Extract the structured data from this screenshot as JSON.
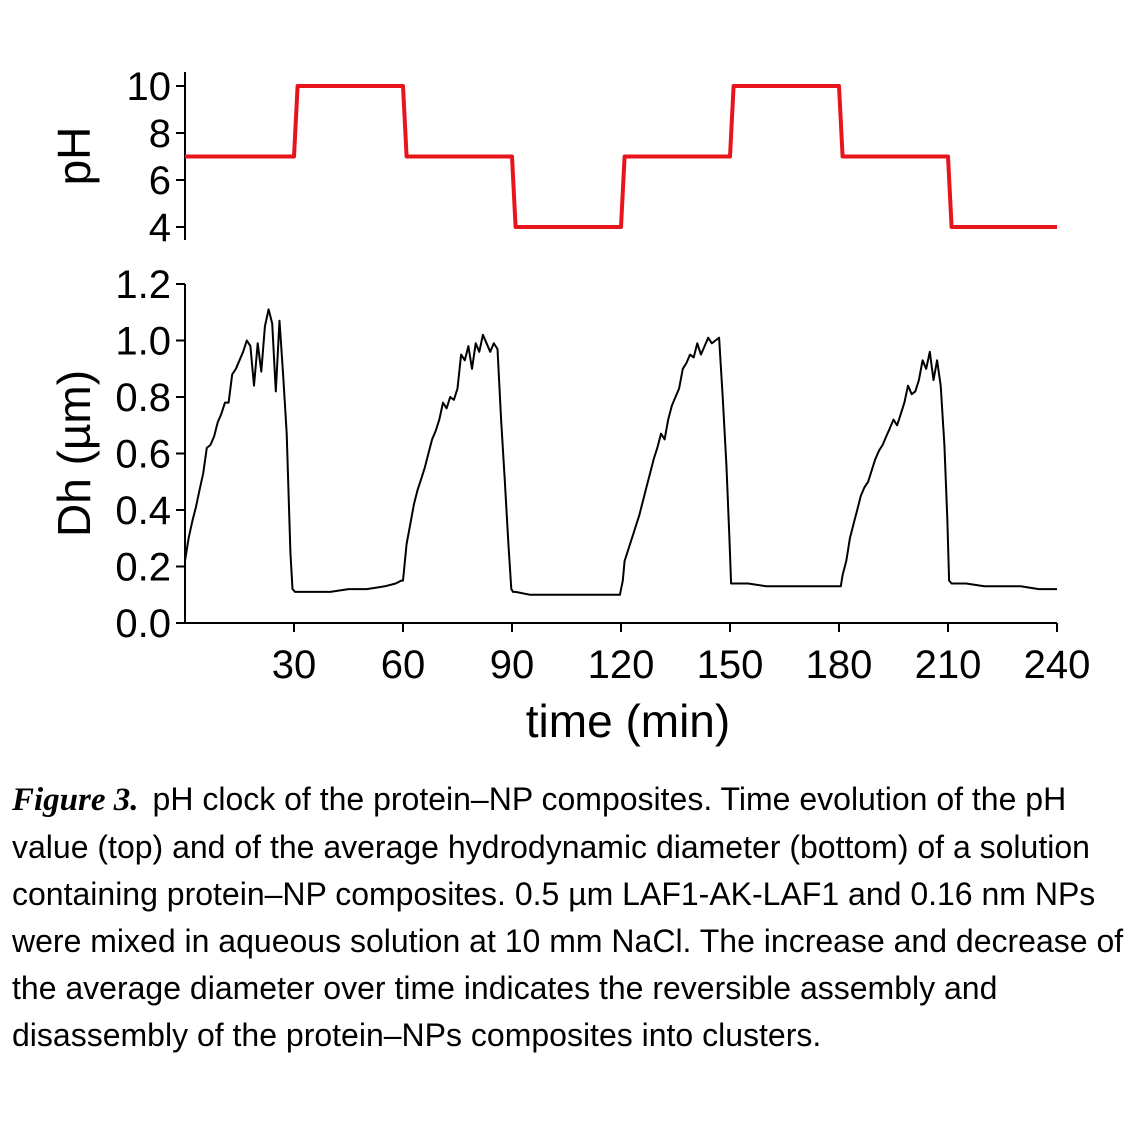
{
  "chart_data": [
    {
      "type": "line",
      "panel": "top",
      "ylabel": "pH",
      "xlim": [
        0,
        240
      ],
      "ylim": [
        4,
        10
      ],
      "yticks": [
        "4",
        "6",
        "8",
        "10"
      ],
      "series": [
        {
          "color": "#e8141c",
          "x": [
            0,
            30,
            31,
            60,
            61,
            90,
            91,
            120,
            121,
            150,
            151,
            180,
            181,
            210,
            211,
            240
          ],
          "y": [
            7,
            7,
            10,
            10,
            7,
            7,
            4,
            4,
            7,
            7,
            10,
            10,
            7,
            7,
            4,
            4
          ]
        }
      ]
    },
    {
      "type": "line",
      "panel": "bottom",
      "ylabel": "Dh (µm)",
      "xlabel": "time (min)",
      "xlim": [
        0,
        240
      ],
      "ylim": [
        0.0,
        1.2
      ],
      "xticks": [
        "30",
        "60",
        "90",
        "120",
        "150",
        "180",
        "210",
        "240"
      ],
      "yticks": [
        "0.0",
        "0.2",
        "0.4",
        "0.6",
        "0.8",
        "1.0",
        "1.2"
      ],
      "series": [
        {
          "color": "#000000",
          "x": [
            0,
            1,
            2,
            3,
            4,
            5,
            6,
            7,
            8,
            9,
            10,
            11,
            12,
            13,
            14,
            15,
            16,
            17,
            18,
            19,
            20,
            21,
            22,
            23,
            24,
            25,
            26,
            27,
            28,
            29,
            29.6,
            30.3,
            31,
            35,
            40,
            45,
            50,
            55,
            58,
            59.5,
            60,
            61,
            62,
            63,
            64,
            65,
            66,
            67,
            68,
            69,
            70,
            71,
            72,
            73,
            74,
            75,
            76,
            77,
            78,
            79,
            80,
            81,
            82,
            83,
            84,
            85,
            86,
            87,
            88,
            89,
            89.8,
            90.3,
            91,
            95,
            100,
            105,
            110,
            115,
            119.7,
            120.5,
            121,
            122,
            123,
            124,
            125,
            126,
            127,
            128,
            129,
            130,
            131,
            132,
            133,
            134,
            135,
            136,
            137,
            138,
            139,
            140,
            141,
            142,
            143,
            144,
            145,
            146,
            147,
            148,
            149,
            149.8,
            150.3,
            151,
            155,
            160,
            165,
            170,
            175,
            179.7,
            180.5,
            181,
            182,
            183,
            184,
            185,
            186,
            187,
            188,
            189,
            190,
            191,
            192,
            193,
            194,
            195,
            196,
            197,
            198,
            199,
            200,
            201,
            202,
            203,
            204,
            205,
            206,
            207,
            208,
            209,
            209.8,
            210.3,
            211,
            215,
            220,
            225,
            230,
            235,
            240
          ],
          "y": [
            0.22,
            0.3,
            0.36,
            0.41,
            0.47,
            0.53,
            0.62,
            0.63,
            0.66,
            0.71,
            0.74,
            0.78,
            0.78,
            0.88,
            0.9,
            0.93,
            0.96,
            1.0,
            0.98,
            0.84,
            0.99,
            0.89,
            1.05,
            1.11,
            1.06,
            0.82,
            1.07,
            0.88,
            0.67,
            0.25,
            0.12,
            0.11,
            0.11,
            0.11,
            0.11,
            0.12,
            0.12,
            0.13,
            0.14,
            0.15,
            0.15,
            0.28,
            0.35,
            0.42,
            0.47,
            0.51,
            0.55,
            0.6,
            0.65,
            0.68,
            0.72,
            0.78,
            0.76,
            0.8,
            0.79,
            0.83,
            0.95,
            0.93,
            0.98,
            0.9,
            0.99,
            0.96,
            1.02,
            0.99,
            0.96,
            0.99,
            0.97,
            0.72,
            0.51,
            0.28,
            0.12,
            0.11,
            0.11,
            0.1,
            0.1,
            0.1,
            0.1,
            0.1,
            0.1,
            0.15,
            0.22,
            0.26,
            0.3,
            0.34,
            0.38,
            0.43,
            0.48,
            0.53,
            0.58,
            0.62,
            0.67,
            0.65,
            0.72,
            0.77,
            0.8,
            0.83,
            0.9,
            0.92,
            0.95,
            0.94,
            0.99,
            0.95,
            0.98,
            1.01,
            0.99,
            1.0,
            1.01,
            0.8,
            0.56,
            0.31,
            0.14,
            0.14,
            0.14,
            0.13,
            0.13,
            0.13,
            0.13,
            0.13,
            0.13,
            0.17,
            0.22,
            0.3,
            0.35,
            0.4,
            0.45,
            0.48,
            0.5,
            0.54,
            0.58,
            0.61,
            0.63,
            0.66,
            0.69,
            0.72,
            0.7,
            0.74,
            0.78,
            0.84,
            0.81,
            0.82,
            0.86,
            0.93,
            0.9,
            0.96,
            0.86,
            0.93,
            0.84,
            0.63,
            0.37,
            0.15,
            0.14,
            0.14,
            0.13,
            0.13,
            0.13,
            0.12,
            0.12
          ]
        }
      ]
    }
  ],
  "caption": {
    "label": "Figure 3.",
    "text": "pH clock of the protein–NP composites. Time evolution of the pH value (top) and of the average hydrodynamic diameter (bottom) of a solution containing protein–NP composites. 0.5 µm LAF1-AK-LAF1 and 0.16 nm NPs were mixed in aqueous solution at 10 mm NaCl. The increase and decrease of the average diameter over time indicates the reversible assembly and disassembly of the protein–NPs composites into clusters."
  }
}
